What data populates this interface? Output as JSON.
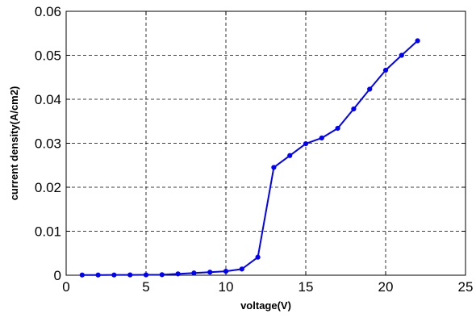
{
  "chart_data": {
    "type": "line",
    "title": "",
    "xlabel": "voltage(V)",
    "ylabel": "current density(A/cm2)",
    "xlim": [
      0,
      25
    ],
    "ylim": [
      0,
      0.06
    ],
    "grid": true,
    "x_ticks": [
      "0",
      "5",
      "10",
      "15",
      "20",
      "25"
    ],
    "y_ticks": [
      "0",
      "0.01",
      "0.02",
      "0.03",
      "0.04",
      "0.05",
      "0.06"
    ],
    "series": [
      {
        "color": "#0000ff",
        "marker": "circle",
        "x": [
          1,
          2,
          3,
          4,
          5,
          6,
          7,
          8,
          9,
          10,
          11,
          12,
          13,
          14,
          15,
          16,
          17,
          18,
          19,
          20,
          21,
          22
        ],
        "y": [
          5e-05,
          5e-05,
          6e-05,
          7e-05,
          8e-05,
          0.00012,
          0.0003,
          0.0005,
          0.0007,
          0.0009,
          0.0014,
          0.0041,
          0.0245,
          0.0272,
          0.0299,
          0.0312,
          0.0334,
          0.0378,
          0.0423,
          0.0466,
          0.05,
          0.0533
        ]
      }
    ]
  }
}
